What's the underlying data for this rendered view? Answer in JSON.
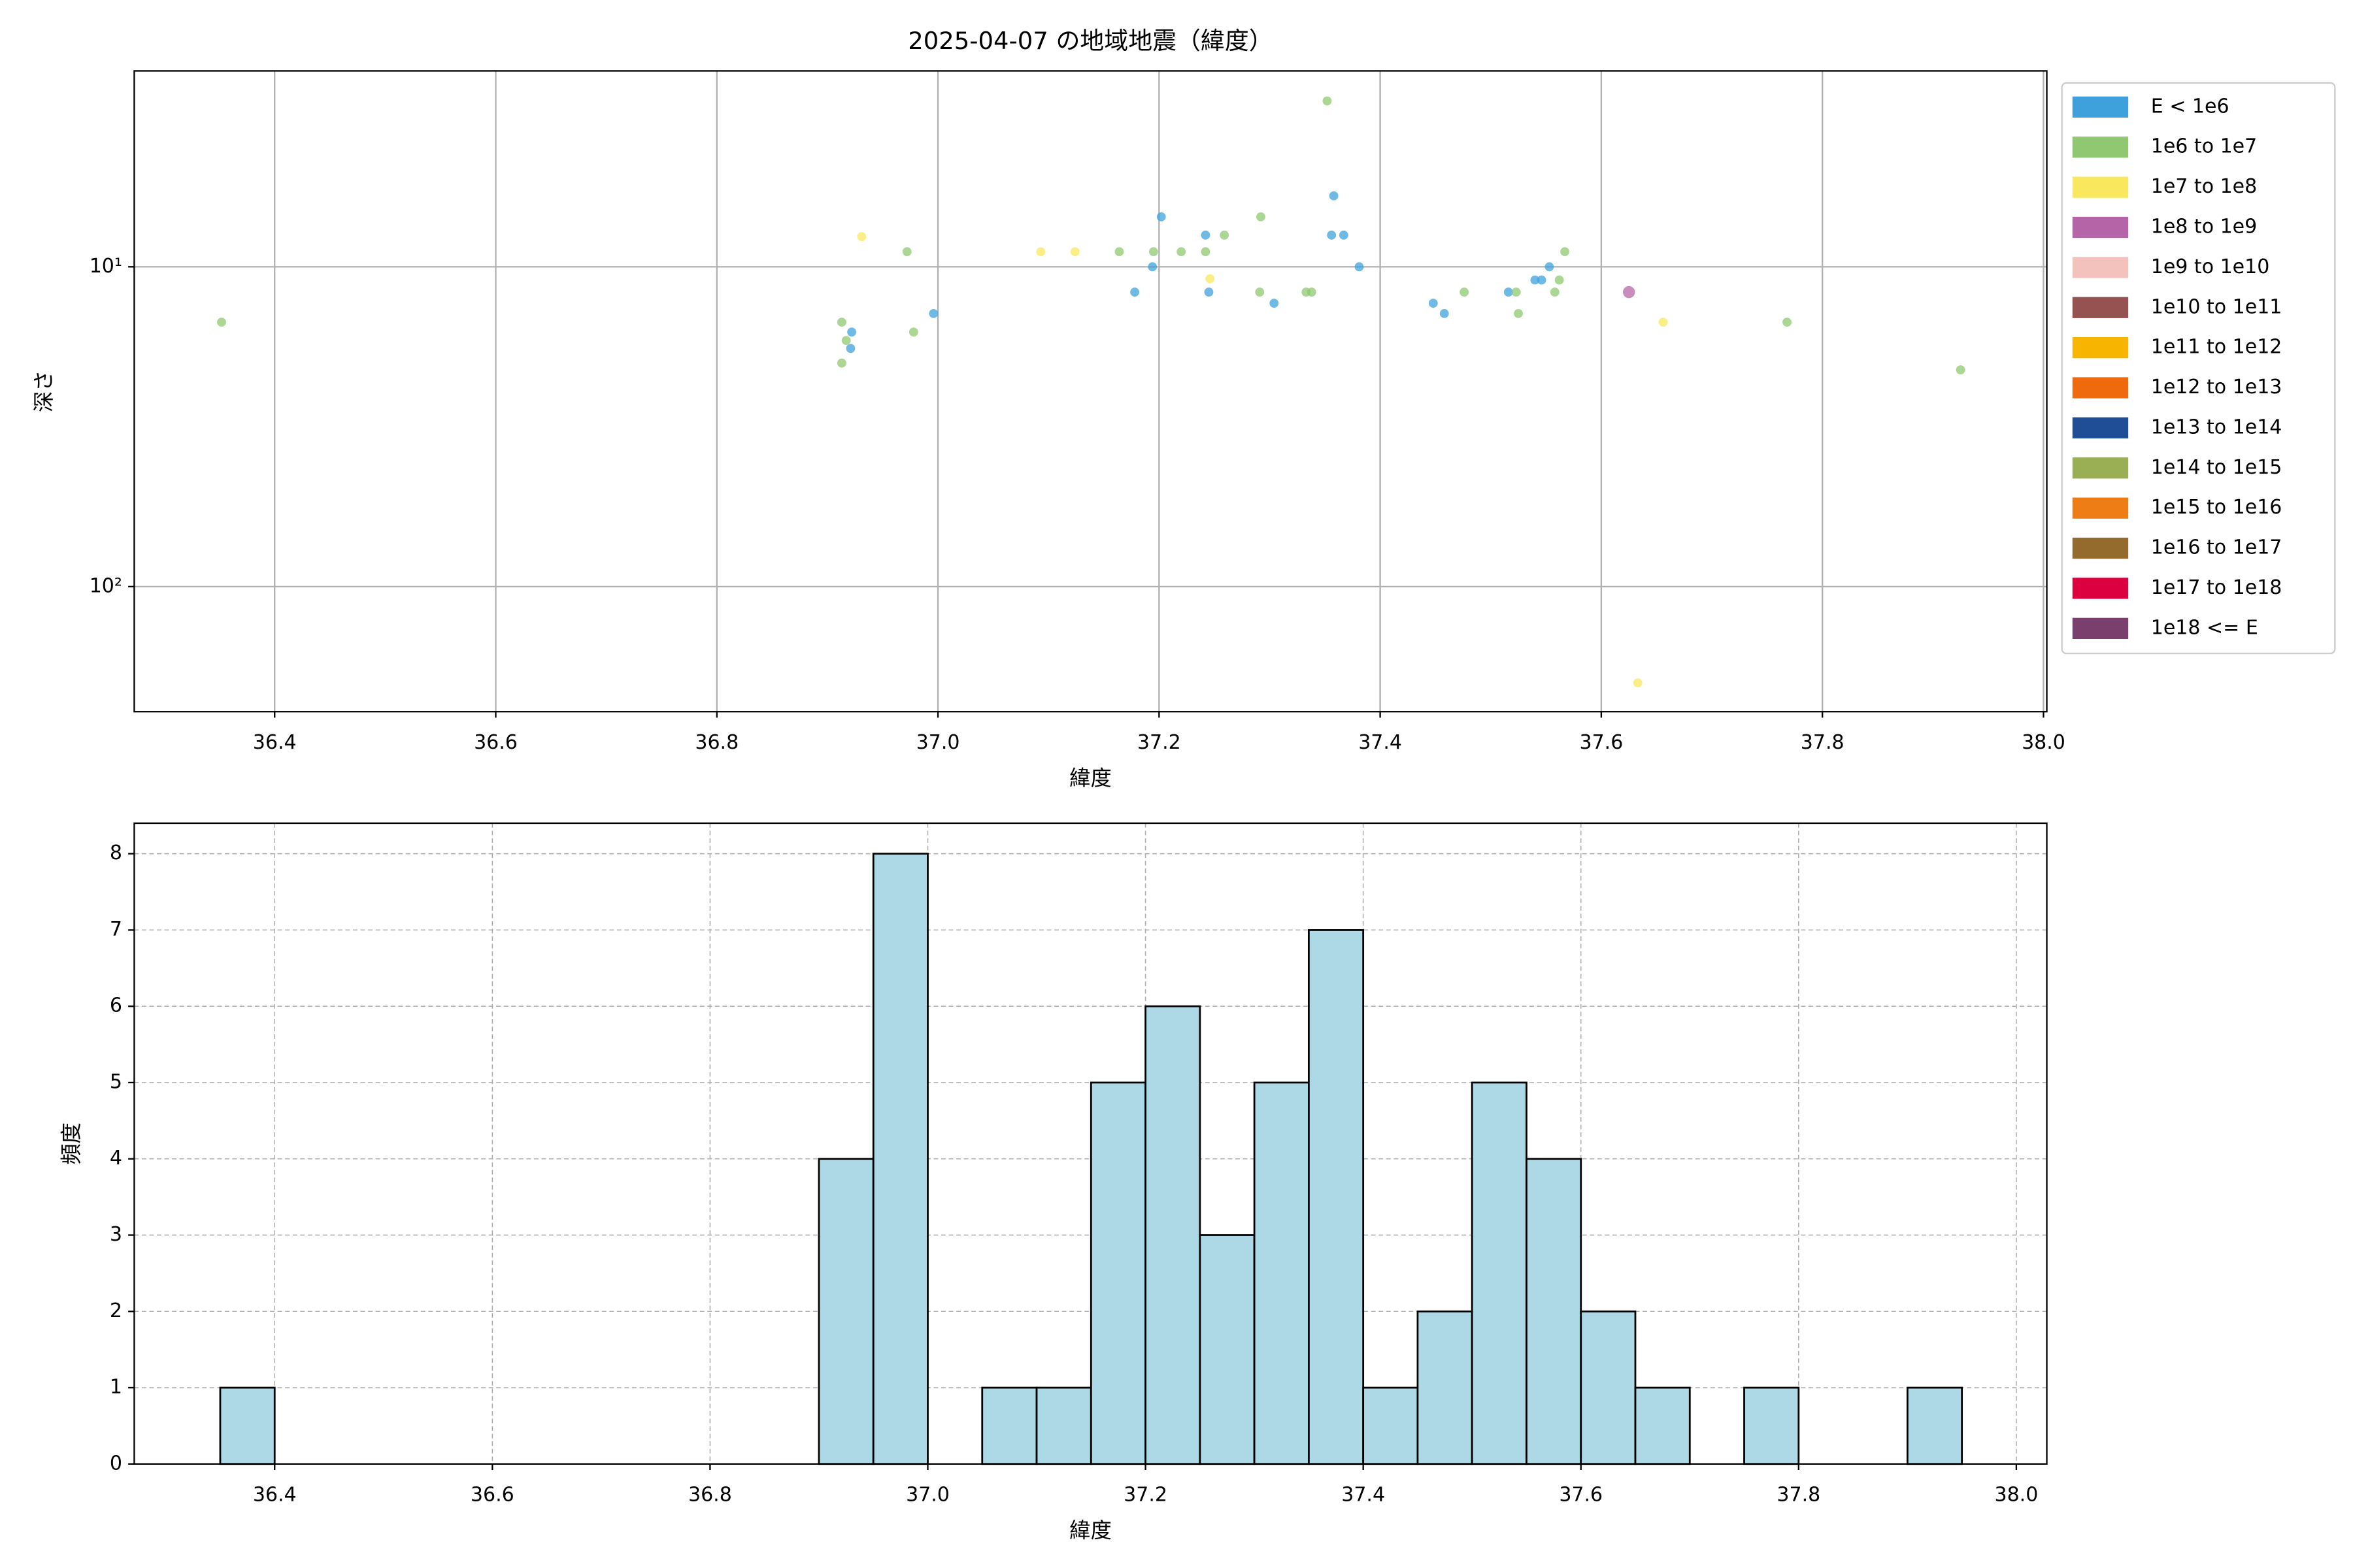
{
  "chart_data": [
    {
      "type": "scatter",
      "title": "2025-04-07 の地域地震（緯度）",
      "x_label": "緯度",
      "y_label": "深さ",
      "xlim": [
        36.273,
        38.003
      ],
      "xticks": [
        36.4,
        36.6,
        36.8,
        {
          "value": 37,
          "label": "37.0"
        },
        37.2,
        37.4,
        37.6,
        37.8,
        {
          "value": 38,
          "label": "38.0"
        }
      ],
      "ylim": [
        2.44,
        246
      ],
      "yscale": "log",
      "y_inverted": true,
      "yticks": [
        {
          "value": 10,
          "label": "10¹"
        },
        {
          "value": 100,
          "label": "10²"
        }
      ],
      "grid": true,
      "grid_style": "solid",
      "legend": "outside-right",
      "series": [
        {
          "name": "E < 1e6",
          "color": "#3fa1dc",
          "x": [
            36.922,
            36.921,
            36.996,
            37.178,
            37.194,
            37.202,
            37.242,
            37.245,
            37.304,
            37.358,
            37.356,
            37.367,
            37.381,
            37.448,
            37.458,
            37.516,
            37.54,
            37.546,
            37.553
          ],
          "y": [
            16.0,
            18.0,
            14.0,
            12.0,
            10,
            6.98,
            7.96,
            12.0,
            13.0,
            6.0,
            7.96,
            7.96,
            10,
            13.0,
            14.0,
            12.0,
            11.0,
            11.0,
            10
          ]
        },
        {
          "name": "1e6 to 1e7",
          "color": "#8fc870",
          "x": [
            36.352,
            36.913,
            36.913,
            36.917,
            36.972,
            36.978,
            37.164,
            37.195,
            37.22,
            37.242,
            37.259,
            37.291,
            37.292,
            37.333,
            37.338,
            37.352,
            37.476,
            37.523,
            37.525,
            37.558,
            37.562,
            37.567,
            37.768,
            37.925
          ],
          "y": [
            14.9,
            14.9,
            20.0,
            17.0,
            8.97,
            16.0,
            8.97,
            8.97,
            8.97,
            8.97,
            7.96,
            12.0,
            6.98,
            12.0,
            12.0,
            3.03,
            12.0,
            12.0,
            14.0,
            12.0,
            11.0,
            8.97,
            14.9,
            21.0
          ]
        },
        {
          "name": "1e7 to 1e8",
          "color": "#f9e85e",
          "x": [
            36.931,
            37.093,
            37.124,
            37.246,
            37.633,
            37.656
          ],
          "y": [
            8.05,
            8.97,
            8.97,
            10.9,
            200,
            14.9
          ]
        },
        {
          "name": "1e8 to 1e9",
          "color": "#b565a7",
          "x": [
            37.625
          ],
          "y": [
            12.0
          ]
        },
        {
          "name": "1e9 to 1e10",
          "color": "#f4c2bc",
          "x": [],
          "y": []
        },
        {
          "name": "1e10 to 1e11",
          "color": "#955251",
          "x": [],
          "y": []
        },
        {
          "name": "1e11 to 1e12",
          "color": "#f7b500",
          "x": [],
          "y": []
        },
        {
          "name": "1e12 to 1e13",
          "color": "#ee6a0c",
          "x": [],
          "y": []
        },
        {
          "name": "1e13 to 1e14",
          "color": "#1f4e96",
          "x": [],
          "y": []
        },
        {
          "name": "1e14 to 1e15",
          "color": "#9aae53",
          "x": [],
          "y": []
        },
        {
          "name": "1e15 to 1e16",
          "color": "#ef7d15",
          "x": [],
          "y": []
        },
        {
          "name": "1e16 to 1e17",
          "color": "#946b2d",
          "x": [],
          "y": []
        },
        {
          "name": "1e17 to 1e18",
          "color": "#dc0040",
          "x": [],
          "y": []
        },
        {
          "name": "1e18 <= E",
          "color": "#7b3f6e",
          "x": [],
          "y": []
        }
      ]
    },
    {
      "type": "histogram",
      "x_label": "緯度",
      "y_label": "頻度",
      "xlim": [
        36.271,
        38.028
      ],
      "xticks": [
        36.4,
        36.6,
        36.8,
        {
          "value": 37,
          "label": "37.0"
        },
        37.2,
        37.4,
        37.6,
        37.8,
        {
          "value": 38,
          "label": "38.0"
        }
      ],
      "ylim": [
        0,
        8.4
      ],
      "yticks": [
        0,
        1,
        2,
        3,
        4,
        5,
        6,
        7,
        8
      ],
      "grid": true,
      "grid_style": "dashed",
      "color": "#add8e6",
      "edge_color": "#000000",
      "bins": [
        36.35,
        36.4,
        36.45,
        36.5,
        36.55,
        36.6,
        36.65,
        36.7,
        36.75,
        36.8,
        36.85,
        36.9,
        36.95,
        37.0,
        37.05,
        37.1,
        37.15,
        37.2,
        37.25,
        37.3,
        37.35,
        37.4,
        37.45,
        37.5,
        37.55,
        37.6,
        37.65,
        37.7,
        37.75,
        37.8,
        37.85,
        37.9,
        37.95
      ],
      "counts": [
        1,
        0,
        0,
        0,
        0,
        0,
        0,
        0,
        0,
        0,
        0,
        4,
        8,
        0,
        1,
        1,
        5,
        6,
        3,
        5,
        7,
        1,
        2,
        5,
        4,
        2,
        1,
        0,
        1,
        0,
        0,
        1
      ]
    }
  ]
}
